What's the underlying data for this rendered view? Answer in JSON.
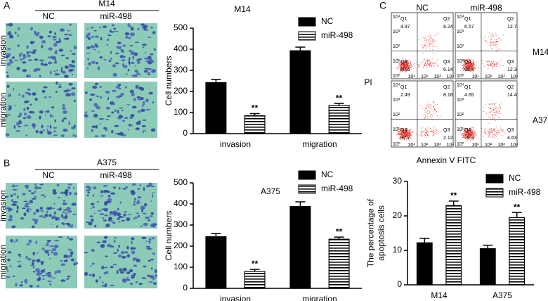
{
  "panel_labels": [
    "A",
    "B",
    "C"
  ],
  "micrographs": [
    {
      "title": "M14",
      "columns": [
        "NC",
        "miR-498"
      ],
      "rows": [
        "invasion",
        "migration"
      ]
    },
    {
      "title": "A375",
      "columns": [
        "NC",
        "miR-498"
      ],
      "rows": [
        "invasion",
        "migration"
      ]
    }
  ],
  "flow": {
    "xlabel": "Annexin V  FITC",
    "ylabel": "PI",
    "columns": [
      "NC",
      "miR-498"
    ],
    "rows": [
      "M14",
      "A375"
    ],
    "ticks": [
      "10⁰",
      "10¹",
      "10²",
      "10³",
      "10⁴"
    ],
    "quadrants": [
      "Q1",
      "Q2",
      "Q3",
      "Q4"
    ],
    "plots": [
      [
        [
          4.97,
          8.24,
          6.14,
          80.6
        ],
        [
          6.57,
          12.7,
          12.3,
          68.4
        ]
      ],
      [
        [
          2.49,
          8.16,
          2.12,
          87.2
        ],
        [
          4.65,
          14.4,
          4.63,
          76.3
        ]
      ]
    ]
  },
  "chart_data": [
    {
      "type": "bar",
      "title": "M14",
      "ylabel": [
        "Cell numbers"
      ],
      "categories": [
        "invasion",
        "migration"
      ],
      "series": [
        {
          "name": "NC",
          "color": "#000000",
          "values": [
            242,
            393
          ],
          "errors": [
            15,
            17
          ]
        },
        {
          "name": "miR-498",
          "color": "#ffffff",
          "hatch": "horizontal",
          "values": [
            85,
            133
          ],
          "errors": [
            10,
            10
          ],
          "significance": [
            "**",
            "**"
          ]
        }
      ],
      "ylim": [
        0,
        500
      ],
      "yticks": [
        0,
        100,
        200,
        300,
        400,
        500
      ]
    },
    {
      "type": "bar",
      "title": "A375",
      "ylabel": [
        "Cell numbers"
      ],
      "categories": [
        "invasion",
        "migration"
      ],
      "series": [
        {
          "name": "NC",
          "color": "#000000",
          "values": [
            245,
            388
          ],
          "errors": [
            15,
            22
          ]
        },
        {
          "name": "miR-498",
          "color": "#ffffff",
          "hatch": "horizontal",
          "values": [
            80,
            233
          ],
          "errors": [
            10,
            10
          ],
          "significance": [
            "**",
            "**"
          ]
        }
      ],
      "ylim": [
        0,
        500
      ],
      "yticks": [
        0,
        100,
        200,
        300,
        400,
        500
      ]
    },
    {
      "type": "bar",
      "ylabel": [
        "The percentage of",
        "apoptosis cells"
      ],
      "categories": [
        "M14",
        "A375"
      ],
      "series": [
        {
          "name": "NC",
          "color": "#000000",
          "values": [
            12.2,
            10.5
          ],
          "errors": [
            1.3,
            1.0
          ]
        },
        {
          "name": "miR-498",
          "color": "#ffffff",
          "hatch": "horizontal",
          "values": [
            23,
            19.5
          ],
          "errors": [
            1.3,
            1.5
          ],
          "significance": [
            "**",
            "**"
          ]
        }
      ],
      "ylim": [
        0,
        30
      ],
      "yticks": [
        0,
        10,
        20,
        30
      ]
    }
  ]
}
